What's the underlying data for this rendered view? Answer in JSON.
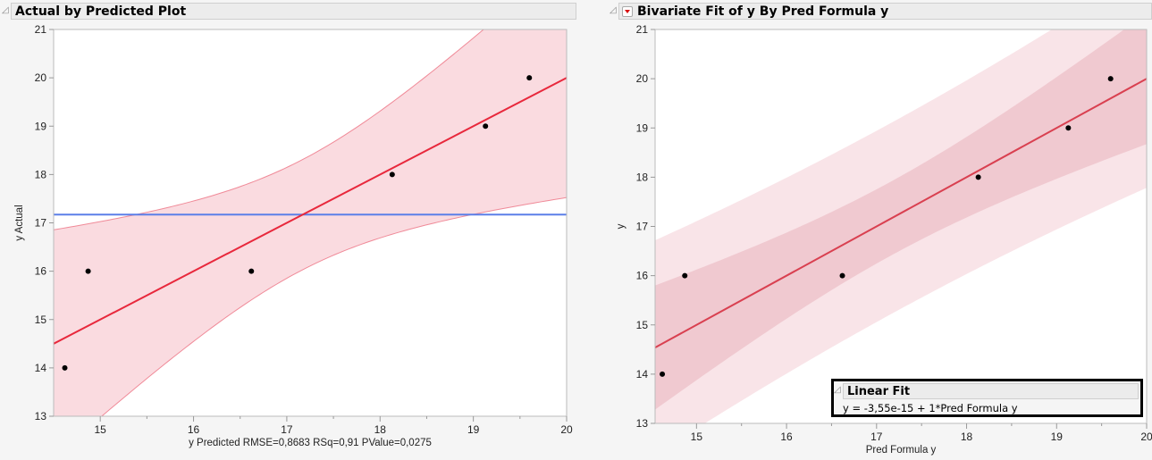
{
  "left_panel": {
    "title": "Actual by Predicted Plot"
  },
  "right_panel": {
    "title": "Bivariate Fit of y By Pred Formula y"
  },
  "linear_fit": {
    "title": "Linear Fit",
    "equation": "y = -3,55e-15 + 1*Pred Formula y"
  },
  "chart_data": [
    {
      "type": "scatter",
      "title": "Actual by Predicted Plot",
      "xlabel": "y Predicted RMSE=0,8683 RSq=0,91 PValue=0,0275",
      "ylabel": "y Actual",
      "xlim": [
        14.5,
        20
      ],
      "ylim": [
        13,
        21
      ],
      "x_ticks": [
        "15",
        "16",
        "17",
        "18",
        "19",
        "20"
      ],
      "y_ticks": [
        "13",
        "14",
        "15",
        "16",
        "17",
        "18",
        "19",
        "20",
        "21"
      ],
      "x": [
        14.62,
        14.87,
        16.62,
        18.13,
        19.13,
        19.6
      ],
      "y": [
        14,
        16,
        16,
        18,
        19,
        20
      ],
      "fit_line": {
        "intercept": 0,
        "slope": 1
      },
      "mean_line": 17.17,
      "colors": {
        "fit": "#e8283c",
        "band": "#fadbe0",
        "band_edge": "#f08a98",
        "mean": "#5b7fe8",
        "points": "#000000"
      }
    },
    {
      "type": "scatter",
      "title": "Bivariate Fit of y By Pred Formula y",
      "xlabel": "Pred Formula y",
      "ylabel": "y",
      "xlim": [
        14.54,
        20
      ],
      "ylim": [
        13,
        21
      ],
      "x_ticks": [
        "15",
        "16",
        "17",
        "18",
        "19",
        "20"
      ],
      "y_ticks": [
        "13",
        "14",
        "15",
        "16",
        "17",
        "18",
        "19",
        "20",
        "21"
      ],
      "x": [
        14.62,
        14.87,
        16.62,
        18.13,
        19.13,
        19.6
      ],
      "y": [
        14,
        16,
        16,
        18,
        19,
        20
      ],
      "fit_line": {
        "intercept": 0,
        "slope": 1
      },
      "colors": {
        "fit": "#d94050",
        "confidence_band": "#f0c9d0",
        "prediction_band": "#f9e4e8",
        "points": "#000000"
      }
    }
  ]
}
